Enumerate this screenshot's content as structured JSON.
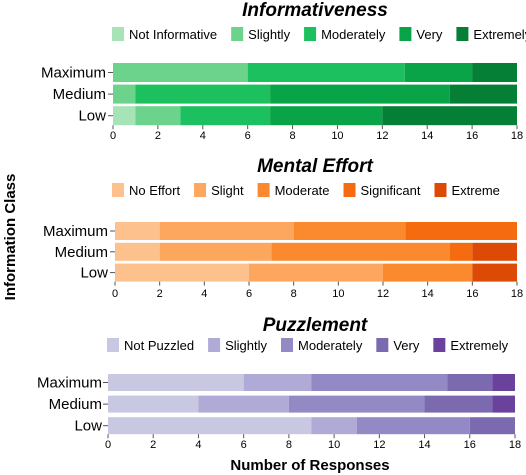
{
  "chart_data": {
    "type": "bar",
    "orientation": "horizontal",
    "stacked": true,
    "ylabel": "Information Class",
    "xlabel": "Number of Responses",
    "xlim": [
      0,
      18
    ],
    "xticks": [
      0,
      2,
      4,
      6,
      8,
      10,
      12,
      14,
      16,
      18
    ],
    "legend_position": "top",
    "panels": [
      {
        "title": "Informativeness",
        "categories": [
          "Maximum",
          "Medium",
          "Low"
        ],
        "series": [
          {
            "name": "Not Informative",
            "color": "#a6e3b6",
            "values": [
              0,
              0,
              1
            ]
          },
          {
            "name": "Slightly",
            "color": "#6bd38b",
            "values": [
              6,
              1,
              2
            ]
          },
          {
            "name": "Moderately",
            "color": "#1cc05e",
            "values": [
              7,
              6,
              4
            ]
          },
          {
            "name": "Very",
            "color": "#0aa448",
            "values": [
              3,
              8,
              5
            ]
          },
          {
            "name": "Extremely",
            "color": "#067f36",
            "values": [
              2,
              3,
              6
            ]
          }
        ]
      },
      {
        "title": "Mental Effort",
        "categories": [
          "Maximum",
          "Medium",
          "Low"
        ],
        "series": [
          {
            "name": "No Effort",
            "color": "#fdc18e",
            "values": [
              2,
              2,
              6
            ]
          },
          {
            "name": "Slight",
            "color": "#fda65e",
            "values": [
              6,
              5,
              6
            ]
          },
          {
            "name": "Moderate",
            "color": "#fb8a2f",
            "values": [
              5,
              8,
              4
            ]
          },
          {
            "name": "Significant",
            "color": "#f56c10",
            "values": [
              5,
              1,
              0
            ]
          },
          {
            "name": "Extreme",
            "color": "#dc4a05",
            "values": [
              0,
              2,
              2
            ]
          }
        ]
      },
      {
        "title": "Puzzlement",
        "categories": [
          "Maximum",
          "Medium",
          "Low"
        ],
        "series": [
          {
            "name": "Not Puzzled",
            "color": "#c8c8e3",
            "values": [
              6,
              4,
              9
            ]
          },
          {
            "name": "Slightly",
            "color": "#afabd6",
            "values": [
              3,
              4,
              2
            ]
          },
          {
            "name": "Moderately",
            "color": "#9389c4",
            "values": [
              6,
              6,
              5
            ]
          },
          {
            "name": "Very",
            "color": "#7c6ab0",
            "values": [
              2,
              3,
              2
            ]
          },
          {
            "name": "Extremely",
            "color": "#6a419d",
            "values": [
              1,
              1,
              0
            ]
          }
        ]
      }
    ]
  }
}
